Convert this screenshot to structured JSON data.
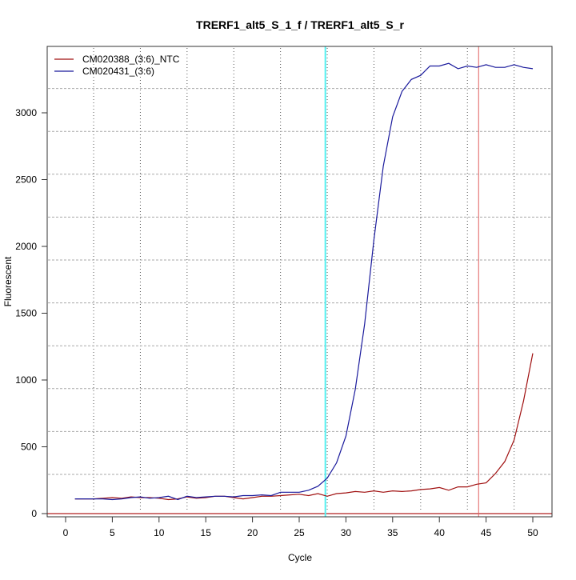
{
  "chart_data": {
    "type": "line",
    "title": "TRERF1_alt5_S_1_f / TRERF1_alt5_S_r",
    "xlabel": "Cycle",
    "ylabel": "Fluorescent",
    "xlim": [
      -2,
      52
    ],
    "ylim": [
      -20,
      3550
    ],
    "x_ticks": [
      0,
      5,
      10,
      15,
      20,
      25,
      30,
      35,
      40,
      45,
      50
    ],
    "y_ticks": [
      0,
      500,
      1000,
      1500,
      2000,
      2500,
      3000
    ],
    "grid": true,
    "legend_position": "top-left",
    "x": [
      1,
      2,
      3,
      4,
      5,
      6,
      7,
      8,
      9,
      10,
      11,
      12,
      13,
      14,
      15,
      16,
      17,
      18,
      19,
      20,
      21,
      22,
      23,
      24,
      25,
      26,
      27,
      28,
      29,
      30,
      31,
      32,
      33,
      34,
      35,
      36,
      37,
      38,
      39,
      40,
      41,
      42,
      43,
      44,
      45,
      46,
      47,
      48,
      49,
      50
    ],
    "series": [
      {
        "name": "CM020388_(3:6)_NTC",
        "color": "#a01010",
        "values": [
          110,
          110,
          110,
          115,
          120,
          115,
          125,
          120,
          120,
          115,
          105,
          110,
          125,
          115,
          120,
          130,
          130,
          120,
          110,
          120,
          130,
          130,
          135,
          140,
          145,
          135,
          150,
          130,
          150,
          155,
          165,
          160,
          170,
          160,
          170,
          165,
          170,
          180,
          185,
          195,
          175,
          200,
          200,
          220,
          230,
          300,
          390,
          550,
          840,
          1200
        ]
      },
      {
        "name": "CM020431_(3:6)",
        "color": "#1a1a9c",
        "values": [
          110,
          110,
          110,
          110,
          105,
          110,
          120,
          125,
          115,
          120,
          130,
          105,
          130,
          120,
          125,
          130,
          130,
          125,
          135,
          135,
          140,
          135,
          160,
          160,
          160,
          175,
          205,
          265,
          380,
          580,
          930,
          1420,
          2050,
          2600,
          2970,
          3160,
          3250,
          3280,
          3350,
          3350,
          3370,
          3330,
          3350,
          3340,
          3360,
          3340,
          3340,
          3360,
          3340,
          3330
        ]
      }
    ],
    "threshold": {
      "value": 0,
      "color": "#b22222"
    },
    "markers": [
      {
        "cycle": 27.8,
        "color": "#55f0f0"
      },
      {
        "cycle": 44.2,
        "color": "#e06060"
      }
    ]
  }
}
